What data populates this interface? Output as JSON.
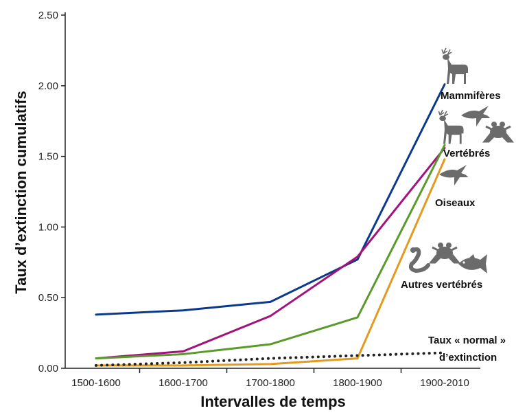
{
  "chart_data": {
    "type": "line",
    "xlabel": "Intervalles de temps",
    "ylabel": "Taux d’extinction cumulatifs",
    "categories": [
      "1500-1600",
      "1600-1700",
      "1700-1800",
      "1800-1900",
      "1900-2010"
    ],
    "ylim": [
      0,
      2.5
    ],
    "yticks": [
      "0.00",
      "0.50",
      "1.00",
      "1.50",
      "2.00",
      "2.50"
    ],
    "grid": false,
    "series": [
      {
        "name": "Mammifères",
        "color": "#0b3a8c",
        "style": "solid",
        "values": [
          0.38,
          0.41,
          0.47,
          0.77,
          2.01
        ]
      },
      {
        "name": "Vertébrés",
        "color": "#a3117a",
        "style": "solid",
        "values": [
          0.07,
          0.12,
          0.37,
          0.79,
          1.56
        ]
      },
      {
        "name": "Oiseaux",
        "color": "#5a9a2a",
        "style": "solid",
        "values": [
          0.07,
          0.1,
          0.17,
          0.36,
          1.58
        ]
      },
      {
        "name": "Autres vertébrés",
        "color": "#e39a1e",
        "style": "solid",
        "values": [
          0.02,
          0.02,
          0.03,
          0.07,
          1.48
        ]
      },
      {
        "name": "Taux « normal » d’extinction",
        "color": "#222222",
        "style": "dotted",
        "values": [
          0.02,
          0.04,
          0.07,
          0.09,
          0.11
        ]
      }
    ],
    "annotations": {
      "mammiferes": "Mammifères",
      "vertebres": "Vertébrés",
      "oiseaux": "Oiseaux",
      "autres": "Autres vertébrés",
      "normal_line1": "Taux « normal »",
      "normal_line2": "d’extinction"
    },
    "icons": [
      "deer-icon",
      "bird-icon",
      "frog-icon",
      "snake-icon",
      "fish-icon"
    ],
    "icon_color": "#6b6b6b"
  }
}
